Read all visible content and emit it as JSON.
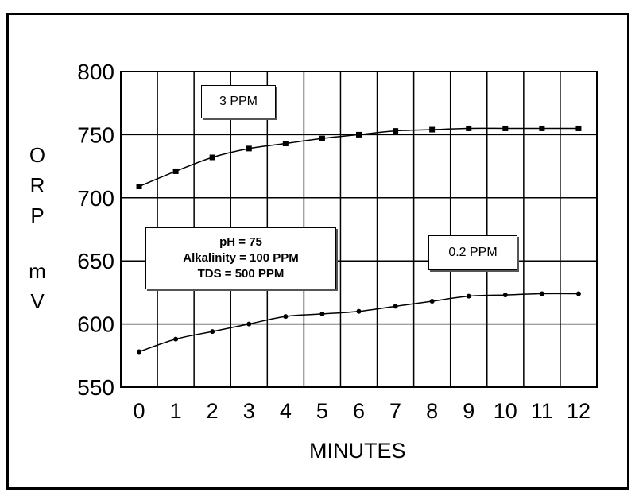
{
  "chart_data": {
    "type": "line",
    "xlabel": "MINUTES",
    "ylabel": "ORP mV",
    "ylabel_letters": [
      "O",
      "R",
      "P",
      "m",
      "V"
    ],
    "x": [
      0,
      1,
      2,
      3,
      4,
      5,
      6,
      7,
      8,
      9,
      10,
      11,
      12
    ],
    "xlim": [
      -0.5,
      12.5
    ],
    "ylim": [
      550,
      800
    ],
    "yticks": [
      550,
      600,
      650,
      700,
      750,
      800
    ],
    "grid": true,
    "series": [
      {
        "name": "3 PPM",
        "marker": "square",
        "values": [
          709,
          721,
          732,
          739,
          743,
          747,
          750,
          753,
          754,
          755,
          755,
          755,
          755
        ]
      },
      {
        "name": "0.2 PPM",
        "marker": "circle",
        "values": [
          578,
          588,
          594,
          600,
          606,
          608,
          610,
          614,
          618,
          622,
          623,
          624,
          624
        ]
      }
    ],
    "annotations": {
      "conditions": [
        "pH = 75",
        "Alkalinity = 100 PPM",
        "TDS = 500 PPM"
      ]
    }
  }
}
